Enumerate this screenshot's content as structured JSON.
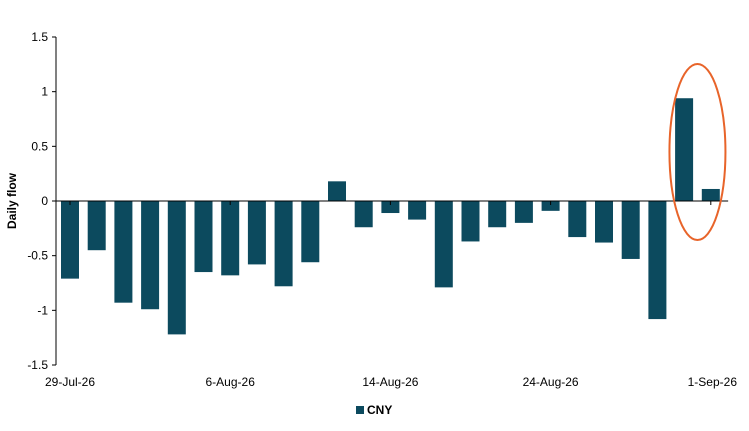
{
  "chart_data": {
    "type": "bar",
    "ylabel": "Daily flow",
    "xlabel": "",
    "title": "",
    "ylim": [
      -1.5,
      1.5
    ],
    "yticks": [
      1.5,
      1,
      0.5,
      0,
      -0.5,
      -1,
      -1.5
    ],
    "ytick_labels": [
      "1.5",
      "1",
      "0.5",
      "0",
      "-0.5",
      "-1",
      "-1.5"
    ],
    "x_tick_labels": [
      "29-Jul-26",
      "6-Aug-26",
      "14-Aug-26",
      "24-Aug-26",
      "1-Sep-26"
    ],
    "x_tick_label_bar_index": [
      0,
      6,
      12,
      18,
      24
    ],
    "series": [
      {
        "name": "CNY",
        "color": "#0c4a5e",
        "values": [
          -0.71,
          -0.45,
          -0.93,
          -0.99,
          -1.22,
          -0.65,
          -0.68,
          -0.58,
          -0.78,
          -0.56,
          0.18,
          -0.24,
          -0.11,
          -0.17,
          -0.79,
          -0.37,
          -0.24,
          -0.2,
          -0.09,
          -0.33,
          -0.38,
          -0.53,
          -1.08,
          0.94,
          0.11
        ]
      }
    ],
    "highlight": {
      "shape": "ellipse",
      "color": "#e8642a",
      "bar_indices": [
        23,
        24
      ]
    },
    "legend": {
      "position": "bottom-center",
      "entries": [
        "CNY"
      ]
    },
    "grid": false
  }
}
